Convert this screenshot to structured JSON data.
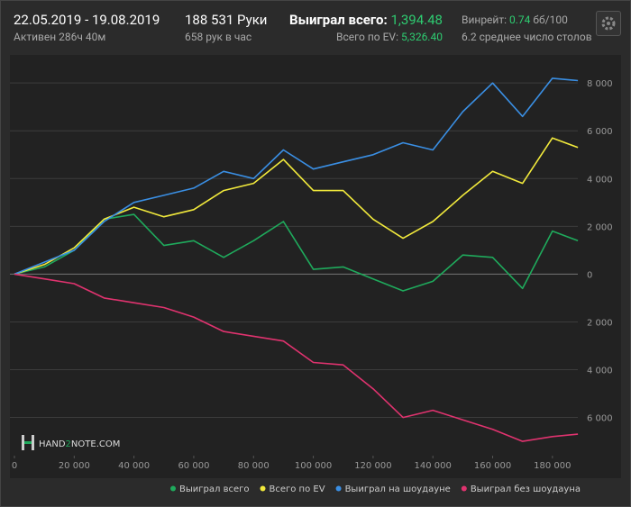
{
  "header": {
    "dates": "22.05.2019 - 19.08.2019",
    "active": "Активен 286ч 40м",
    "hands": "188 531 Руки",
    "per_hour": "658 рук в час",
    "won_label": "Выиграл всего:",
    "won_value": "1,394.48",
    "ev_label": "Всего по EV:",
    "ev_value": "5,326.40",
    "winrate_label": "Винрейт:",
    "winrate_value": "0.74",
    "winrate_unit": "бб/100",
    "tables": "6.2 среднее число столов"
  },
  "logo": {
    "left": "HAND",
    "mid": "2",
    "right": "NOTE.COM"
  },
  "chart_data": {
    "type": "line",
    "x": [
      0,
      10000,
      20000,
      30000,
      40000,
      50000,
      60000,
      70000,
      80000,
      90000,
      100000,
      110000,
      120000,
      130000,
      140000,
      150000,
      160000,
      170000,
      180000,
      188531
    ],
    "series": [
      {
        "name": "Выиграл всего",
        "color": "#1faa5c",
        "values": [
          0,
          300,
          1000,
          2300,
          2500,
          1200,
          1400,
          700,
          1400,
          2200,
          200,
          300,
          -200,
          -700,
          -300,
          800,
          700,
          -600,
          1800,
          1400
        ]
      },
      {
        "name": "Всего по EV",
        "color": "#f2ea3c",
        "values": [
          0,
          400,
          1100,
          2300,
          2800,
          2400,
          2700,
          3500,
          3800,
          4800,
          3500,
          3500,
          2300,
          1500,
          2200,
          3300,
          4300,
          3800,
          5700,
          5300
        ]
      },
      {
        "name": "Выиграл на шоудауне",
        "color": "#3a8fe4",
        "values": [
          0,
          500,
          1000,
          2200,
          3000,
          3300,
          3600,
          4300,
          4000,
          5200,
          4400,
          4700,
          5000,
          5500,
          5200,
          6800,
          8000,
          6600,
          8200,
          8100
        ]
      },
      {
        "name": "Выиграл без шоудауна",
        "color": "#e0336f",
        "values": [
          0,
          -200,
          -400,
          -1000,
          -1200,
          -1400,
          -1800,
          -2400,
          -2600,
          -2800,
          -3700,
          -3800,
          -4800,
          -6000,
          -5700,
          -6100,
          -6500,
          -7000,
          -6800,
          -6700
        ]
      }
    ],
    "xlim": [
      0,
      190000
    ],
    "xticks": [
      0,
      {
        "value": 20000,
        "label": "20 000"
      },
      {
        "value": 40000,
        "label": "40 000"
      },
      {
        "value": 60000,
        "label": "60 000"
      },
      {
        "value": 80000,
        "label": "80 000"
      },
      {
        "value": 100000,
        "label": "100 000"
      },
      {
        "value": 120000,
        "label": "120 000"
      },
      {
        "value": 140000,
        "label": "140 000"
      },
      {
        "value": 160000,
        "label": "160 000"
      },
      {
        "value": 180000,
        "label": "180 000"
      }
    ],
    "ylim": [
      -7600,
      9100
    ],
    "yticks": [
      {
        "value": 8000,
        "label": "8 000"
      },
      {
        "value": 6000,
        "label": "6 000"
      },
      {
        "value": 4000,
        "label": "4 000"
      },
      {
        "value": 2000,
        "label": "2 000"
      },
      0,
      {
        "value": -2000,
        "label": "2 000"
      },
      {
        "value": -4000,
        "label": "4 000"
      },
      {
        "value": -6000,
        "label": "6 000"
      }
    ],
    "grid": true
  }
}
